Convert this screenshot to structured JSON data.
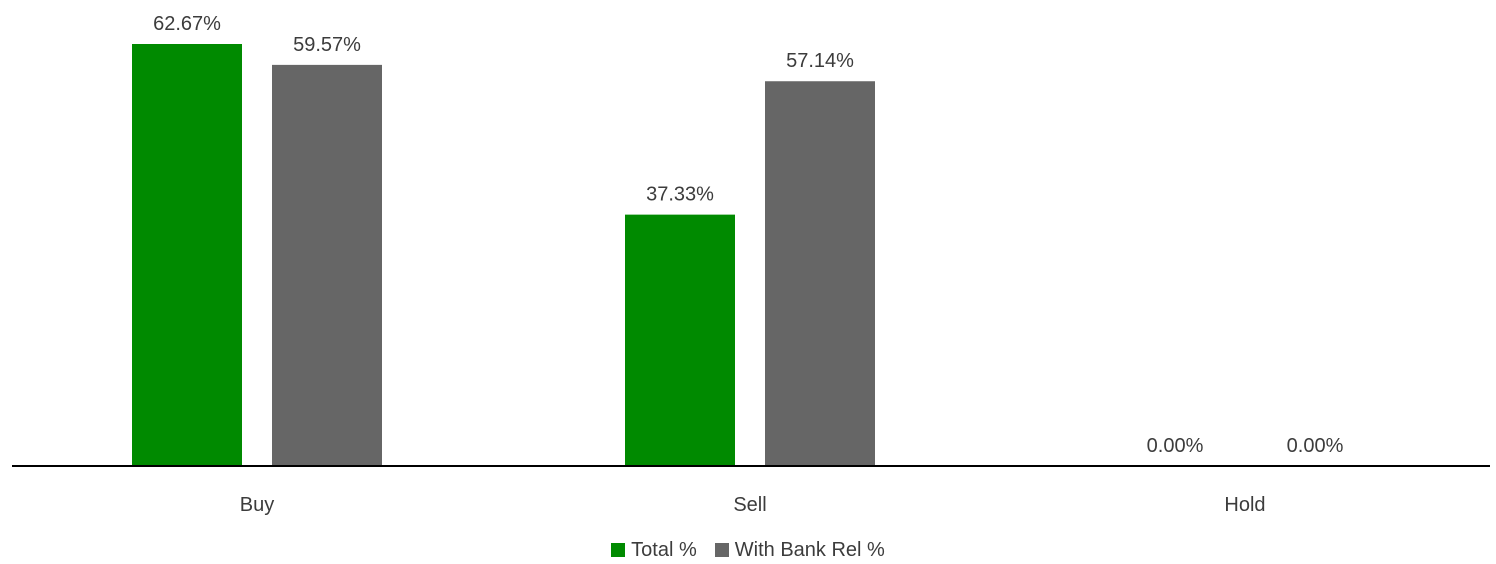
{
  "chart_data": {
    "type": "bar",
    "categories": [
      "Buy",
      "Sell",
      "Hold"
    ],
    "series": [
      {
        "name": "Total %",
        "values": [
          62.67,
          37.33,
          0.0
        ],
        "color": "#008a00"
      },
      {
        "name": "With Bank Rel %",
        "values": [
          59.57,
          57.14,
          0.0
        ],
        "color": "#666666"
      }
    ],
    "value_labels": [
      [
        "62.67%",
        "37.33%",
        "0.00%"
      ],
      [
        "59.57%",
        "57.14%",
        "0.00%"
      ]
    ],
    "title": "",
    "xlabel": "",
    "ylabel": "",
    "ylim": [
      0,
      66
    ],
    "grid": false,
    "legend_position": "bottom-center",
    "axis_color": "#000000",
    "text_color": "#3c3c3c"
  }
}
